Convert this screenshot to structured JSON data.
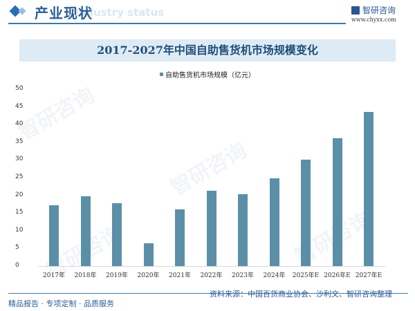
{
  "header": {
    "title": "产业现状",
    "ghost_text": "Industry status",
    "brand_name": "智研咨询",
    "brand_url": "www.chyxx.com"
  },
  "chart_title": "2017-2027年中国自助售货机市场规模变化",
  "footer": {
    "left": "精品报告 · 专项定制 · 品质服务",
    "source": "资料来源：中国百货商业协会、沙利文、智研咨询整理"
  },
  "colors": {
    "bar": "#5b8fa8",
    "title": "#1f4e79",
    "banner": "#deebf5",
    "accent": "#2c5e96"
  },
  "chart_data": {
    "type": "bar",
    "title": "2017-2027年中国自助售货机市场规模变化",
    "xlabel": "",
    "ylabel": "",
    "ylim": [
      0,
      50
    ],
    "yticks": [
      0,
      5,
      10,
      15,
      20,
      25,
      30,
      35,
      40,
      45,
      50
    ],
    "grid": false,
    "legend_position": "top",
    "categories": [
      "2017年",
      "2018年",
      "2019年",
      "2020年",
      "2021年",
      "2022年",
      "2023年",
      "2024年",
      "2025年E",
      "2026年E",
      "2027年E"
    ],
    "series": [
      {
        "name": "自助售货机市场规模（亿元）",
        "values": [
          17.1,
          19.8,
          17.7,
          6.4,
          16.1,
          21.2,
          20.4,
          24.9,
          30.0,
          36.2,
          43.6
        ]
      }
    ]
  }
}
